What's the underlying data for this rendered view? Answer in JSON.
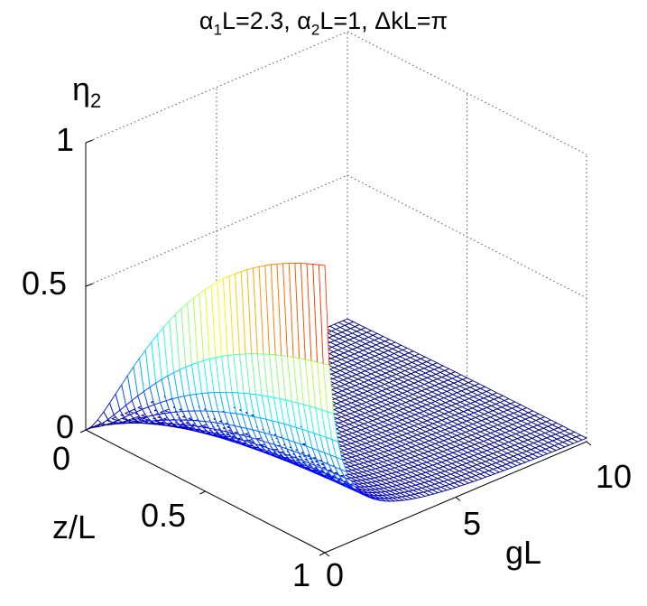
{
  "title": {
    "p1a": "α",
    "p1s": "1",
    "p1b": "L=2.3, ",
    "p2a": "α",
    "p2s": "2",
    "p2b": "L=1, ΔkL=π"
  },
  "zlabel": {
    "base": "η",
    "sub": "2"
  },
  "xlabel": "z/L",
  "ylabel": "gL",
  "ticks": {
    "z": [
      "0",
      "0.5",
      "1"
    ],
    "x": [
      "0",
      "0.5",
      "1"
    ],
    "y": [
      "0",
      "5",
      "10"
    ]
  },
  "chart_data": {
    "type": "surface",
    "title": "α1L=2.3, α2L=1, ΔkL=π",
    "xlabel": "z/L",
    "ylabel": "gL",
    "zlabel": "η2",
    "xlim": [
      0,
      1
    ],
    "ylim": [
      0,
      10
    ],
    "zlim": [
      0,
      1
    ],
    "colormap": "jet",
    "grid": true,
    "z_ticks": [
      0,
      0.5,
      1
    ],
    "x_ticks": [
      0,
      0.5,
      1
    ],
    "y_ticks": [
      0,
      5,
      10
    ],
    "edge_profile_at_gL_0": {
      "z_over_L": [
        0,
        0.1,
        0.2,
        0.3,
        0.4,
        0.5,
        0.6,
        0.7,
        0.8,
        0.9,
        1.0
      ],
      "eta2": [
        0.02,
        0.25,
        0.45,
        0.6,
        0.71,
        0.79,
        0.86,
        0.91,
        0.95,
        0.98,
        1.0
      ]
    },
    "edge_profile_at_zL_1": {
      "gL": [
        0,
        1,
        2,
        3,
        4,
        5,
        6,
        7,
        8,
        9,
        10
      ],
      "eta2": [
        1.0,
        0.22,
        0.09,
        0.05,
        0.03,
        0.02,
        0.015,
        0.01,
        0.008,
        0.006,
        0.005
      ]
    }
  }
}
